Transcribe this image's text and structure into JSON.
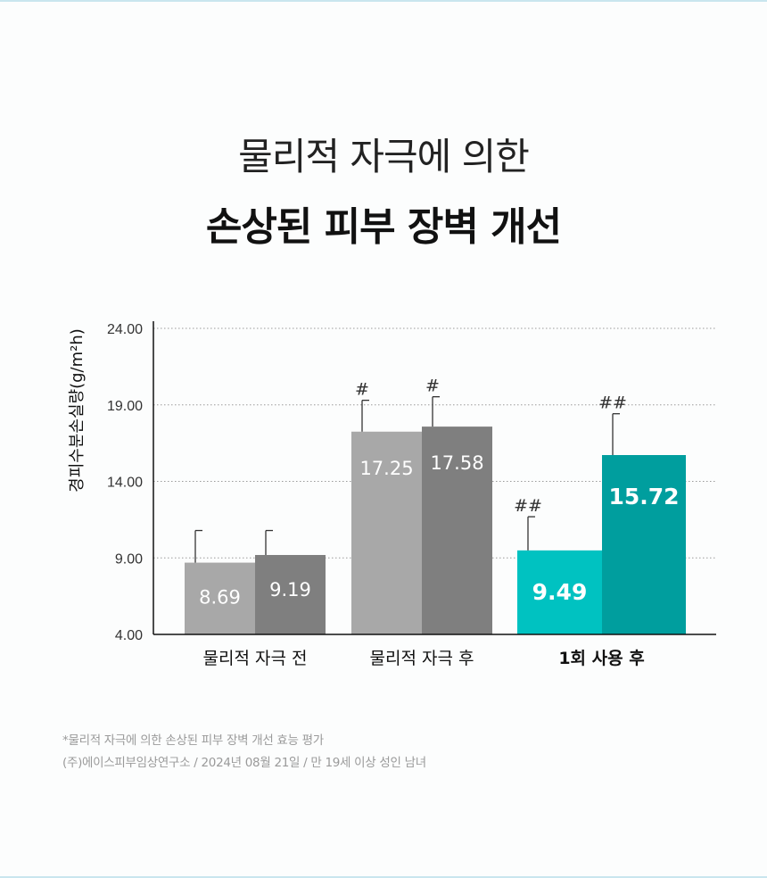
{
  "header": {
    "title_line1": "물리적 자극에 의한",
    "title_line2": "손상된 피부 장벽 개선"
  },
  "chart_data": {
    "type": "bar",
    "ylabel": "경피수분손실량(g/m²h)",
    "ylim": [
      4,
      24
    ],
    "yticks": [
      "24.00",
      "19.00",
      "14.00",
      "9.00",
      "4.00"
    ],
    "ytick_values": [
      24,
      19,
      14,
      9,
      4
    ],
    "grid": "horizontal-dotted",
    "groups": [
      {
        "label": "물리적 자극 전",
        "bold": false,
        "bars": [
          {
            "value": 8.69,
            "label": "8.69",
            "error": 2.1,
            "mark": "",
            "color": "#a8a8a8"
          },
          {
            "value": 9.19,
            "label": "9.19",
            "error": 1.6,
            "mark": "",
            "color": "#7f7f7f"
          }
        ]
      },
      {
        "label": "물리적 자극 후",
        "bold": false,
        "bars": [
          {
            "value": 17.25,
            "label": "17.25",
            "error": 2.05,
            "mark": "#",
            "color": "#a8a8a8"
          },
          {
            "value": 17.58,
            "label": "17.58",
            "error": 1.95,
            "mark": "#",
            "color": "#7f7f7f"
          }
        ]
      },
      {
        "label": "1회 사용 후",
        "bold": true,
        "bars": [
          {
            "value": 9.49,
            "label": "9.49",
            "error": 2.2,
            "mark": "##",
            "color": "#00c2c1"
          },
          {
            "value": 15.72,
            "label": "15.72",
            "error": 2.7,
            "mark": "##",
            "color": "#009e9e"
          }
        ]
      }
    ]
  },
  "footnote": {
    "line1": "*물리적 자극에 의한 손상된 피부 장벽 개선 효능 평가",
    "line2": "(주)에이스피부임상연구소 / 2024년 08월 21일  / 만 19세 이상 성인 남녀"
  }
}
